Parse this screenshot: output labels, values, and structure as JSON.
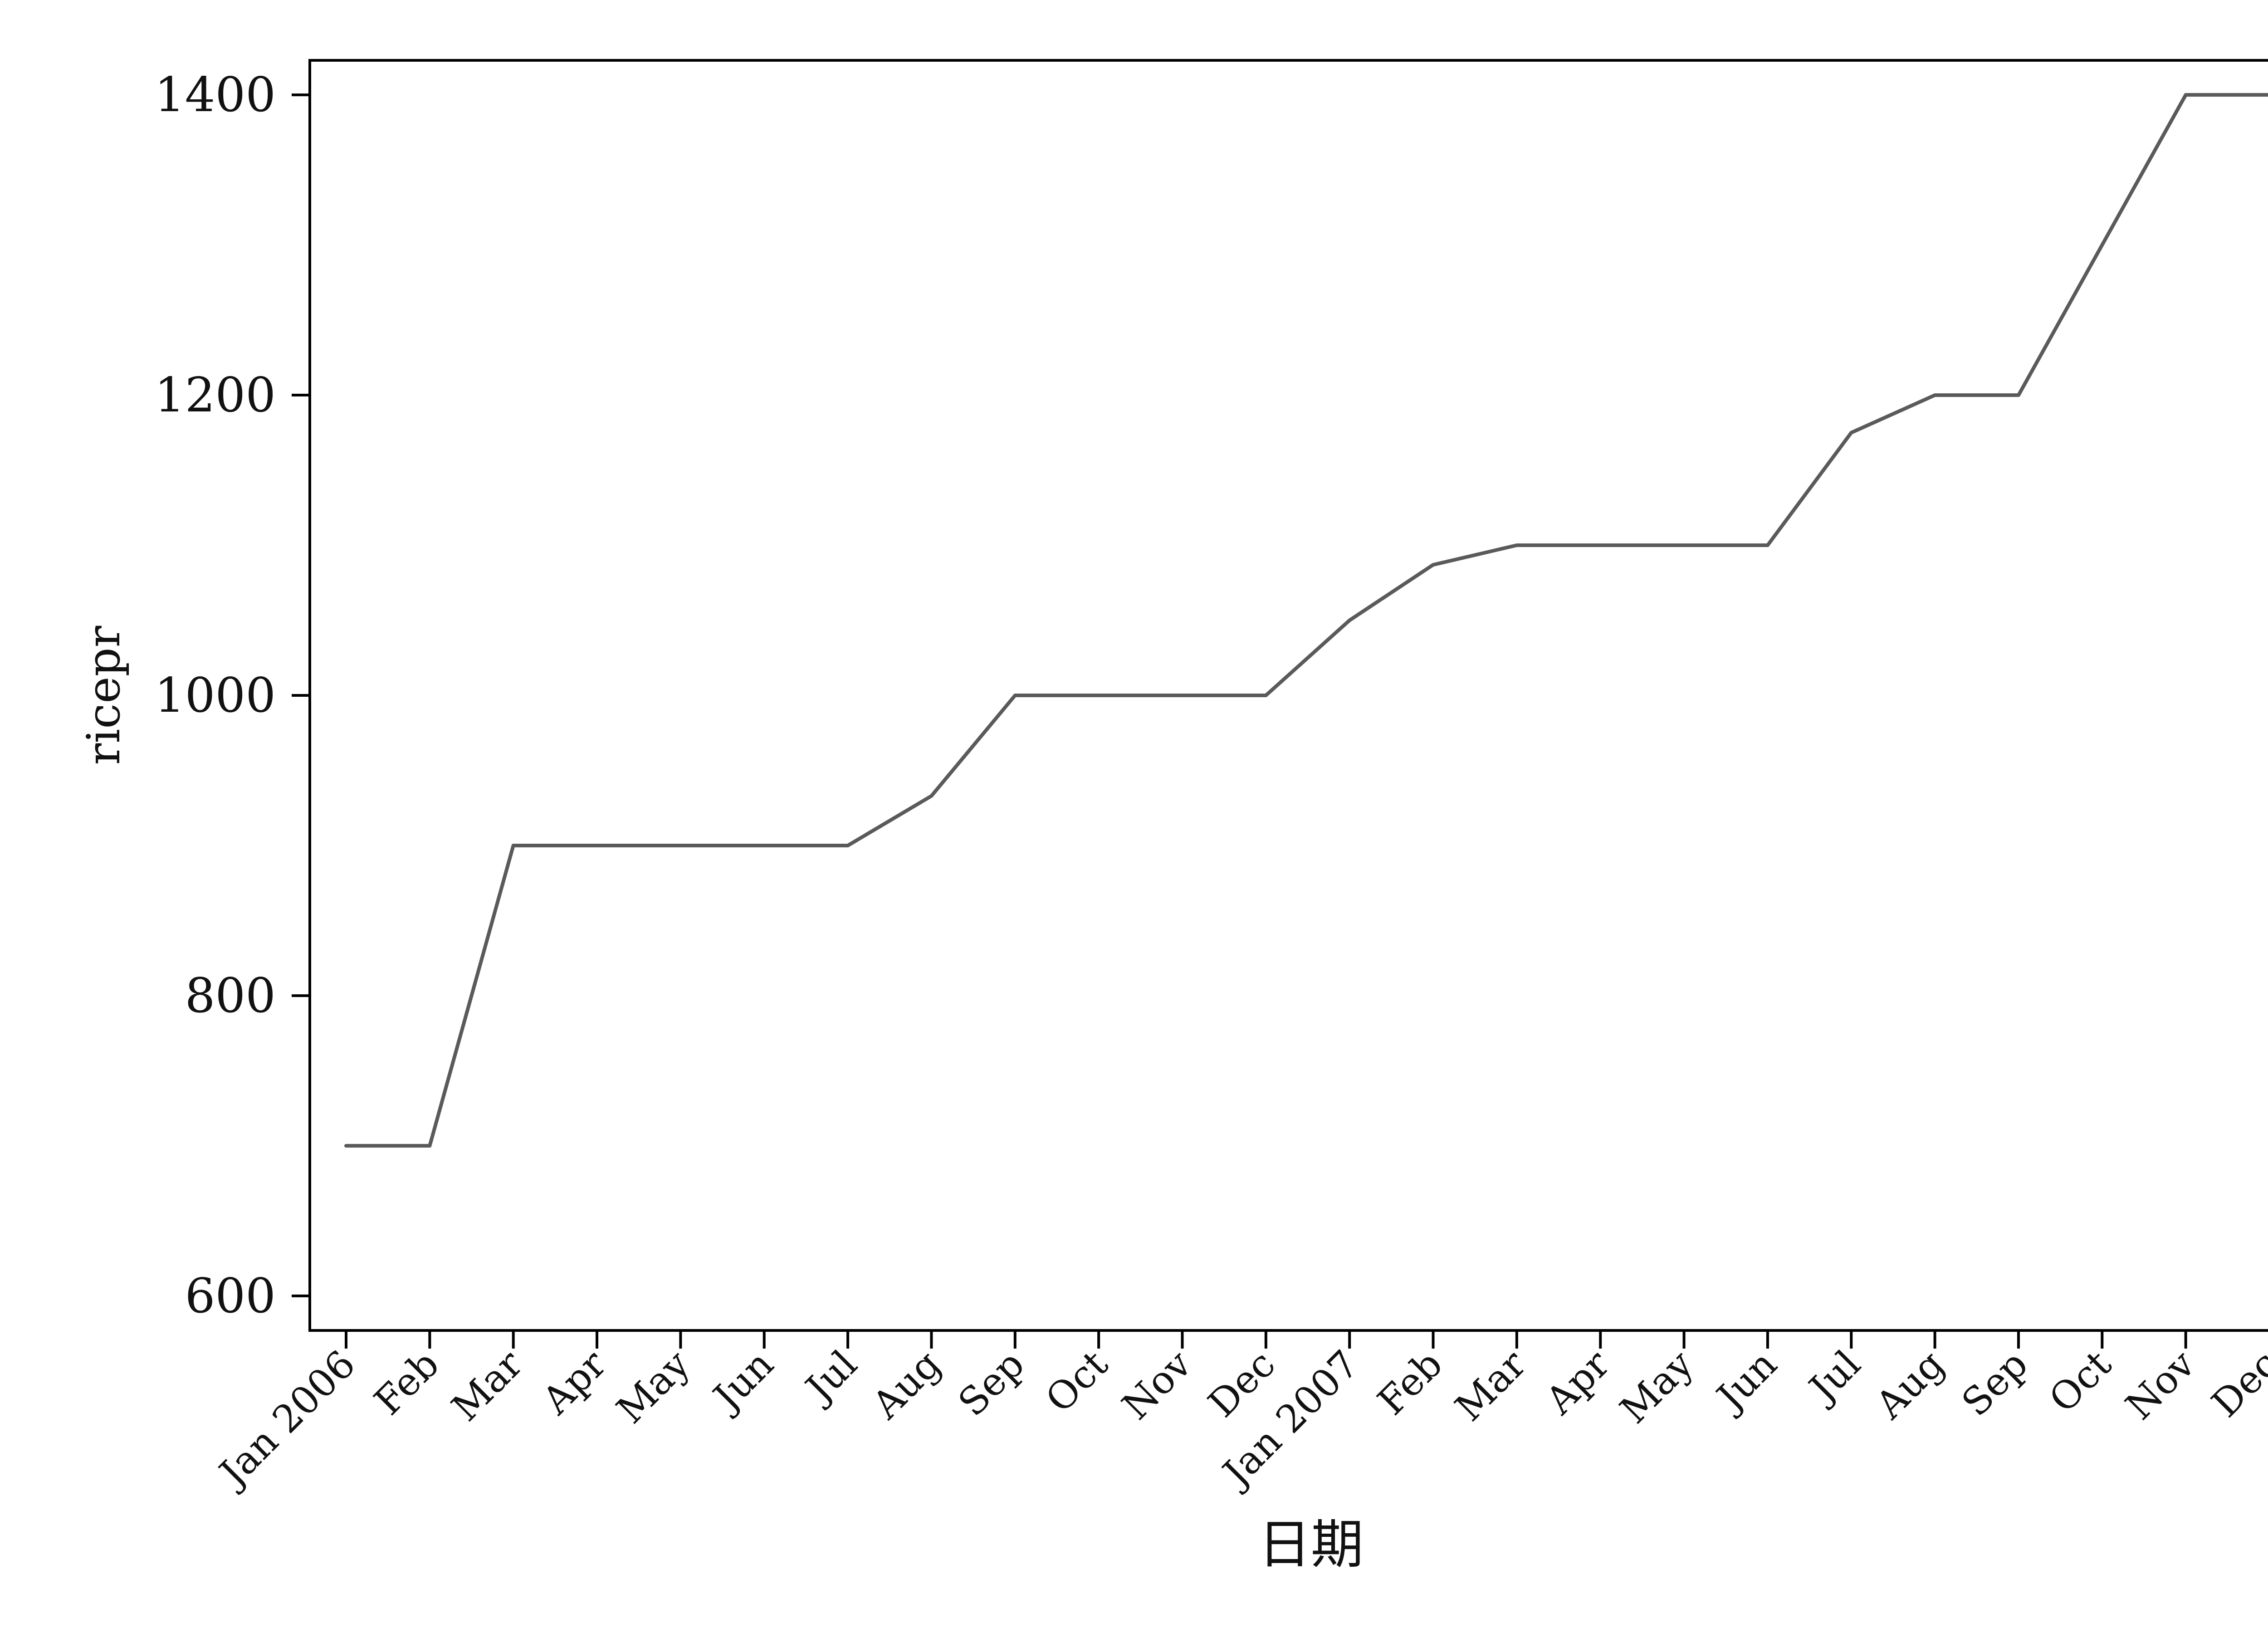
{
  "chart_data": {
    "type": "line",
    "title": "",
    "xlabel": "日期",
    "ylabel": "ricepr",
    "x": [
      "Jan 2006",
      "Feb",
      "Mar",
      "Apr",
      "May",
      "Jun",
      "Jul",
      "Aug",
      "Sep",
      "Oct",
      "Nov",
      "Dec",
      "Jan 2007",
      "Feb",
      "Mar",
      "Apr",
      "May",
      "Jun",
      "Jul",
      "Aug",
      "Sep",
      "Oct",
      "Nov",
      "Dec"
    ],
    "series": [
      {
        "values": [
          700,
          700,
          900,
          900,
          900,
          900,
          900,
          933,
          1000,
          1000,
          1000,
          1000,
          1050,
          1087,
          1100,
          1100,
          1100,
          1100,
          1175,
          1200,
          1200,
          1300,
          1400,
          1400
        ]
      }
    ],
    "ylim": [
      577,
      1423
    ],
    "yticks": [
      600,
      800,
      1000,
      1200,
      1400
    ],
    "grid": false,
    "line_color": "#5a5a5a",
    "axis_color": "#000000"
  }
}
